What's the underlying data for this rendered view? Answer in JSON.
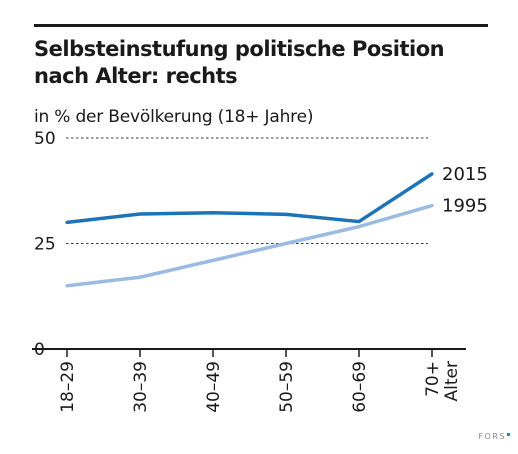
{
  "chart_data": {
    "type": "line",
    "title": [
      "Selbsteinstufung politische Position",
      "nach Alter: rechts"
    ],
    "subtitle": "in % der Bevölkerung (18+ Jahre)",
    "xlabel": "Alter",
    "ylabel": "",
    "categories": [
      "18–29",
      "30–39",
      "40–49",
      "50–59",
      "60–69",
      "70+"
    ],
    "ylim": [
      0,
      50
    ],
    "yticks": [
      0,
      25,
      50
    ],
    "grid": "dashed horizontal at 25 and 50",
    "legend": "direct labels at right end of lines",
    "series": [
      {
        "name": "2015",
        "color": "#1f73b7",
        "values": [
          30,
          32,
          32.3,
          31.9,
          30.2,
          41.5
        ]
      },
      {
        "name": "1995",
        "color": "#9bbbe2",
        "values": [
          15,
          17,
          21,
          25,
          29,
          34
        ]
      }
    ]
  },
  "footer": {
    "source_logo": "FORS"
  }
}
